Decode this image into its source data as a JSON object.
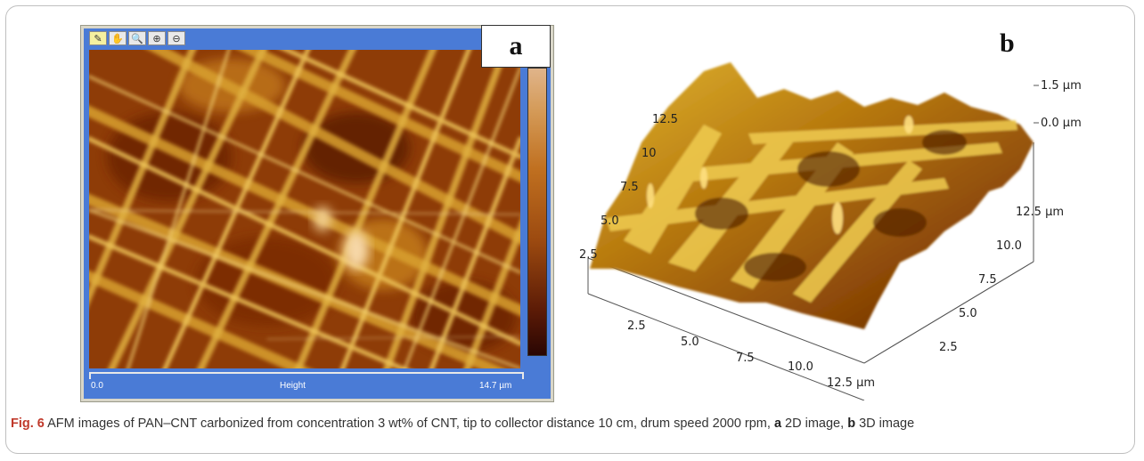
{
  "panel_a": {
    "label": "a",
    "toolbar": [
      {
        "icon": "ruler-icon",
        "glyph": "✎"
      },
      {
        "icon": "hand-icon",
        "glyph": "✋"
      },
      {
        "icon": "magnifier-icon",
        "glyph": "🔍"
      },
      {
        "icon": "zoom-in-icon",
        "glyph": "⊕"
      },
      {
        "icon": "zoom-out-icon",
        "glyph": "⊖"
      }
    ],
    "scale_start": "0.0",
    "scale_name": "Height",
    "scale_end": "14.7 µm"
  },
  "panel_b": {
    "label": "b",
    "z_top": "1.5 µm",
    "z_mid": "0.0 µm",
    "left_ticks": [
      "12.5",
      "10",
      "7.5",
      "5.0",
      "2.5"
    ],
    "right_ticks": [
      "12.5 µm",
      "10.0",
      "7.5",
      "5.0",
      "2.5"
    ],
    "bottom_ticks": [
      "2.5",
      "5.0",
      "7.5",
      "10.0",
      "12.5 µm"
    ]
  },
  "caption": {
    "fig": "Fig. 6",
    "text_1": " AFM images of PAN–CNT carbonized from concentration 3 wt% of CNT, tip to collector distance 10 cm, drum speed 2000 rpm, ",
    "a": "a",
    "text_2": " 2D image, ",
    "b": "b",
    "text_3": " 3D image"
  }
}
